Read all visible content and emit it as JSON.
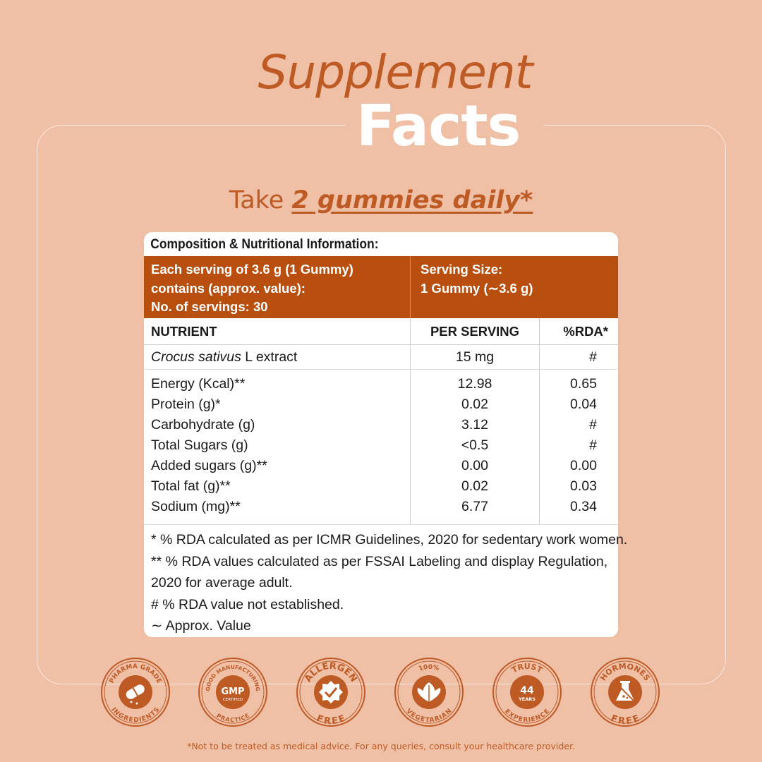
{
  "header": {
    "title_line1": "Supplement",
    "title_line2": "Facts",
    "take_prefix": "Take ",
    "take_emphasis": "2 gummies daily*"
  },
  "panel": {
    "title": "Composition & Nutritional Information:",
    "serving_lines": [
      "Each serving of 3.6 g (1 Gummy)",
      "contains (approx. value):",
      "No. of servings: 30"
    ],
    "serving_size_lines": [
      "Serving Size:",
      "1 Gummy (∼3.6 g)"
    ],
    "columns": [
      "NUTRIENT",
      "PER SERVING",
      "%RDA*"
    ],
    "extract_row": {
      "name_italic": "Crocus sativus",
      "name_rest": " L extract",
      "per_serving": "15 mg",
      "rda": "#"
    },
    "rows": [
      {
        "name": "Energy (Kcal)**",
        "per_serving": "12.98",
        "rda": "0.65"
      },
      {
        "name": "Protein (g)*",
        "per_serving": "0.02",
        "rda": "0.04"
      },
      {
        "name": "Carbohydrate (g)",
        "per_serving": "3.12",
        "rda": "#"
      },
      {
        "name": "Total Sugars (g)",
        "per_serving": "<0.5",
        "rda": "#"
      },
      {
        "name": "Added sugars (g)**",
        "per_serving": "0.00",
        "rda": "0.00"
      },
      {
        "name": "Total fat (g)**",
        "per_serving": "0.02",
        "rda": "0.03"
      },
      {
        "name": "Sodium (mg)**",
        "per_serving": "6.77",
        "rda": "0.34"
      }
    ],
    "notes": [
      "* % RDA calculated as per ICMR Guidelines, 2020 for sedentary work women.",
      "** % RDA values calculated as per FSSAI Labeling and display Regulation,",
      "2020 for average adult.",
      "# % RDA value not established.",
      "∼ Approx. Value"
    ]
  },
  "badges": [
    {
      "icon": "capsule-icon",
      "top": "PHARMA GRADE",
      "bottom": "INGREDIENTS",
      "center": ""
    },
    {
      "icon": "gmp-icon",
      "top": "GOOD MANUFACTURING",
      "bottom": "PRACTICE",
      "center": "GMP",
      "sub": "CERTIFIED"
    },
    {
      "icon": "check-seal-icon",
      "top": "ALLERGEN",
      "bottom": "FREE",
      "center": ""
    },
    {
      "icon": "leaf-icon",
      "top": "100%",
      "bottom": "VEGETARIAN",
      "center": ""
    },
    {
      "icon": "trust-icon",
      "top": "TRUST",
      "bottom": "EXPERIENCE",
      "center": "44",
      "sub": "YEARS"
    },
    {
      "icon": "flask-crossed-icon",
      "top": "HORMONES",
      "bottom": "FREE",
      "center": ""
    }
  ],
  "colors": {
    "background": "#EFBFA6",
    "accent": "#BE5A24",
    "table_header": "#B84F0E"
  },
  "disclaimer": "*Not to be treated as medical advice. For any queries, consult your healthcare provider."
}
